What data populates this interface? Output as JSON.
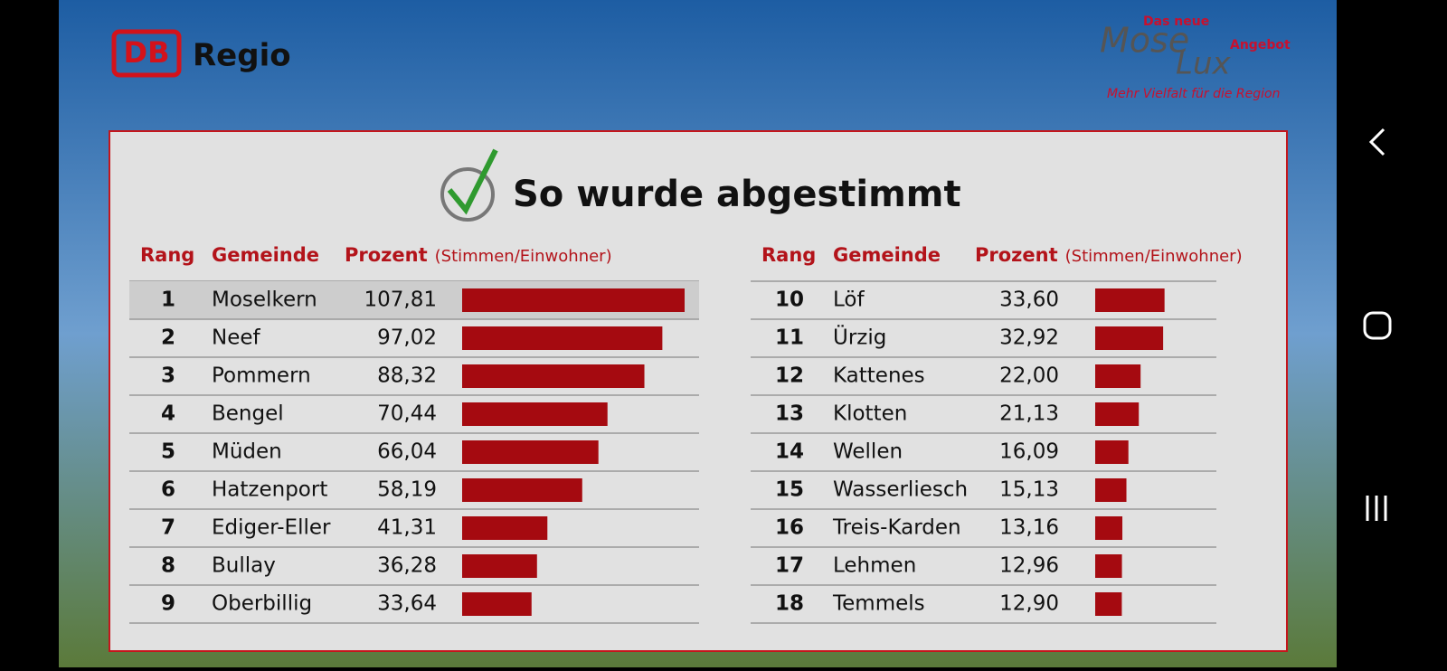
{
  "header": {
    "db": "DB",
    "regio": "Regio",
    "das_neue": "Das neue",
    "mose": "Mose",
    "lux": "Lux",
    "angebot": "Angebot",
    "slogan": "Mehr Vielfalt für die Region"
  },
  "chart_data": {
    "type": "bar",
    "title": "So wurde abgestimmt",
    "columns": {
      "rank": "Rang",
      "name": "Gemeinde",
      "value": "Prozent",
      "value_note": "(Stimmen/Einwohner)"
    },
    "ranks": [
      "1",
      "2",
      "3",
      "4",
      "5",
      "6",
      "7",
      "8",
      "9",
      "10",
      "11",
      "12",
      "13",
      "14",
      "15",
      "16",
      "17",
      "18"
    ],
    "categories": [
      "Moselkern",
      "Neef",
      "Pommern",
      "Bengel",
      "Müden",
      "Hatzenport",
      "Ediger-Eller",
      "Bullay",
      "Oberbillig",
      "Löf",
      "Ürzig",
      "Kattenes",
      "Klotten",
      "Wellen",
      "Wasserliesch",
      "Treis-Karden",
      "Lehmen",
      "Temmels"
    ],
    "values": [
      107.81,
      97.02,
      88.32,
      70.44,
      66.04,
      58.19,
      41.31,
      36.28,
      33.64,
      33.6,
      32.92,
      22.0,
      21.13,
      16.09,
      15.13,
      13.16,
      12.96,
      12.9
    ],
    "value_labels": [
      "107,81",
      "97,02",
      "88,32",
      "70,44",
      "66,04",
      "58,19",
      "41,31",
      "36,28",
      "33,64",
      "33,60",
      "32,92",
      "22,00",
      "21,13",
      "16,09",
      "15,13",
      "13,16",
      "12,96",
      "12,90"
    ],
    "color": "#a50a10"
  }
}
